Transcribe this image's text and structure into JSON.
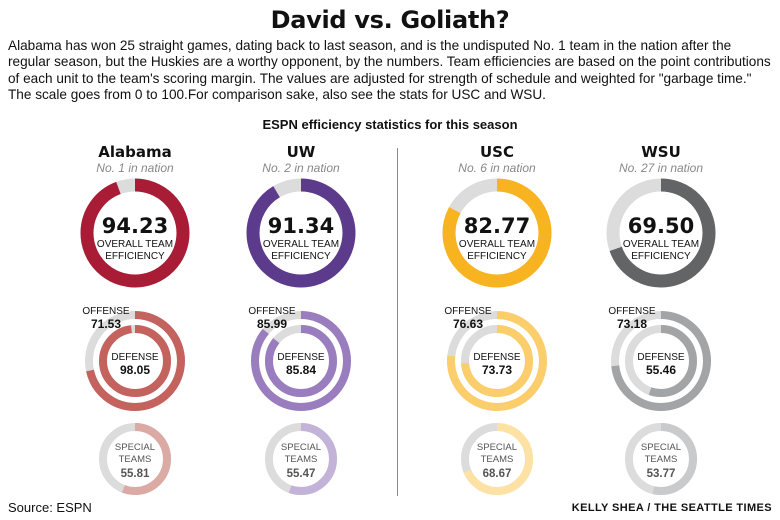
{
  "title": "David vs. Goliath?",
  "intro": "Alabama has won 25 straight games, dating back to last season, and is the undisputed No. 1 team in the nation after the regular season, but the Huskies are a worthy opponent, by the numbers. Team efficiencies are based on the point contributions of each unit to the team's scoring margin. The values are adjusted for strength of schedule and weighted for \"garbage time.\" The scale goes from 0 to 100.For comparison sake, also see the stats for USC and WSU.",
  "subtitle": "ESPN efficiency statistics for this season",
  "source": "Source: ESPN",
  "credit": "KELLY SHEA / THE SEATTLE TIMES",
  "labels": {
    "overall_line1": "OVERALL TEAM",
    "overall_line2": "EFFICIENCY",
    "offense": "OFFENSE",
    "defense": "DEFENSE",
    "special_line1": "SPECIAL",
    "special_line2": "TEAMS"
  },
  "colors": {
    "track": "#dcdcdc",
    "alabama": "#a81c35",
    "uw": "#5d3b8c",
    "usc": "#f7b320",
    "wsu": "#636466"
  },
  "chart_data": {
    "type": "donut",
    "scale": [
      0,
      100
    ],
    "teams": [
      {
        "name": "Alabama",
        "rank": "No. 1 in nation",
        "overall": 94.23,
        "offense": 71.53,
        "defense": 98.05,
        "special": 55.81,
        "colors": {
          "overall": "#a81c35",
          "unit": "#c4625e",
          "special": "#dbaaa4"
        }
      },
      {
        "name": "UW",
        "rank": "No. 2 in nation",
        "overall": 91.34,
        "offense": 85.99,
        "defense": 85.84,
        "special": 55.47,
        "colors": {
          "overall": "#5d3b8c",
          "unit": "#9a7dbf",
          "special": "#c4b3d8"
        }
      },
      {
        "name": "USC",
        "rank": "No. 6 in nation",
        "overall": 82.77,
        "offense": 76.63,
        "defense": 73.73,
        "special": 68.67,
        "colors": {
          "overall": "#f7b320",
          "unit": "#fbce6b",
          "special": "#fde2a4"
        }
      },
      {
        "name": "WSU",
        "rank": "No. 27 in nation",
        "overall": 69.5,
        "offense": 73.18,
        "defense": 55.46,
        "special": 53.77,
        "colors": {
          "overall": "#636466",
          "unit": "#a3a4a6",
          "special": "#c9cacb"
        }
      }
    ]
  }
}
